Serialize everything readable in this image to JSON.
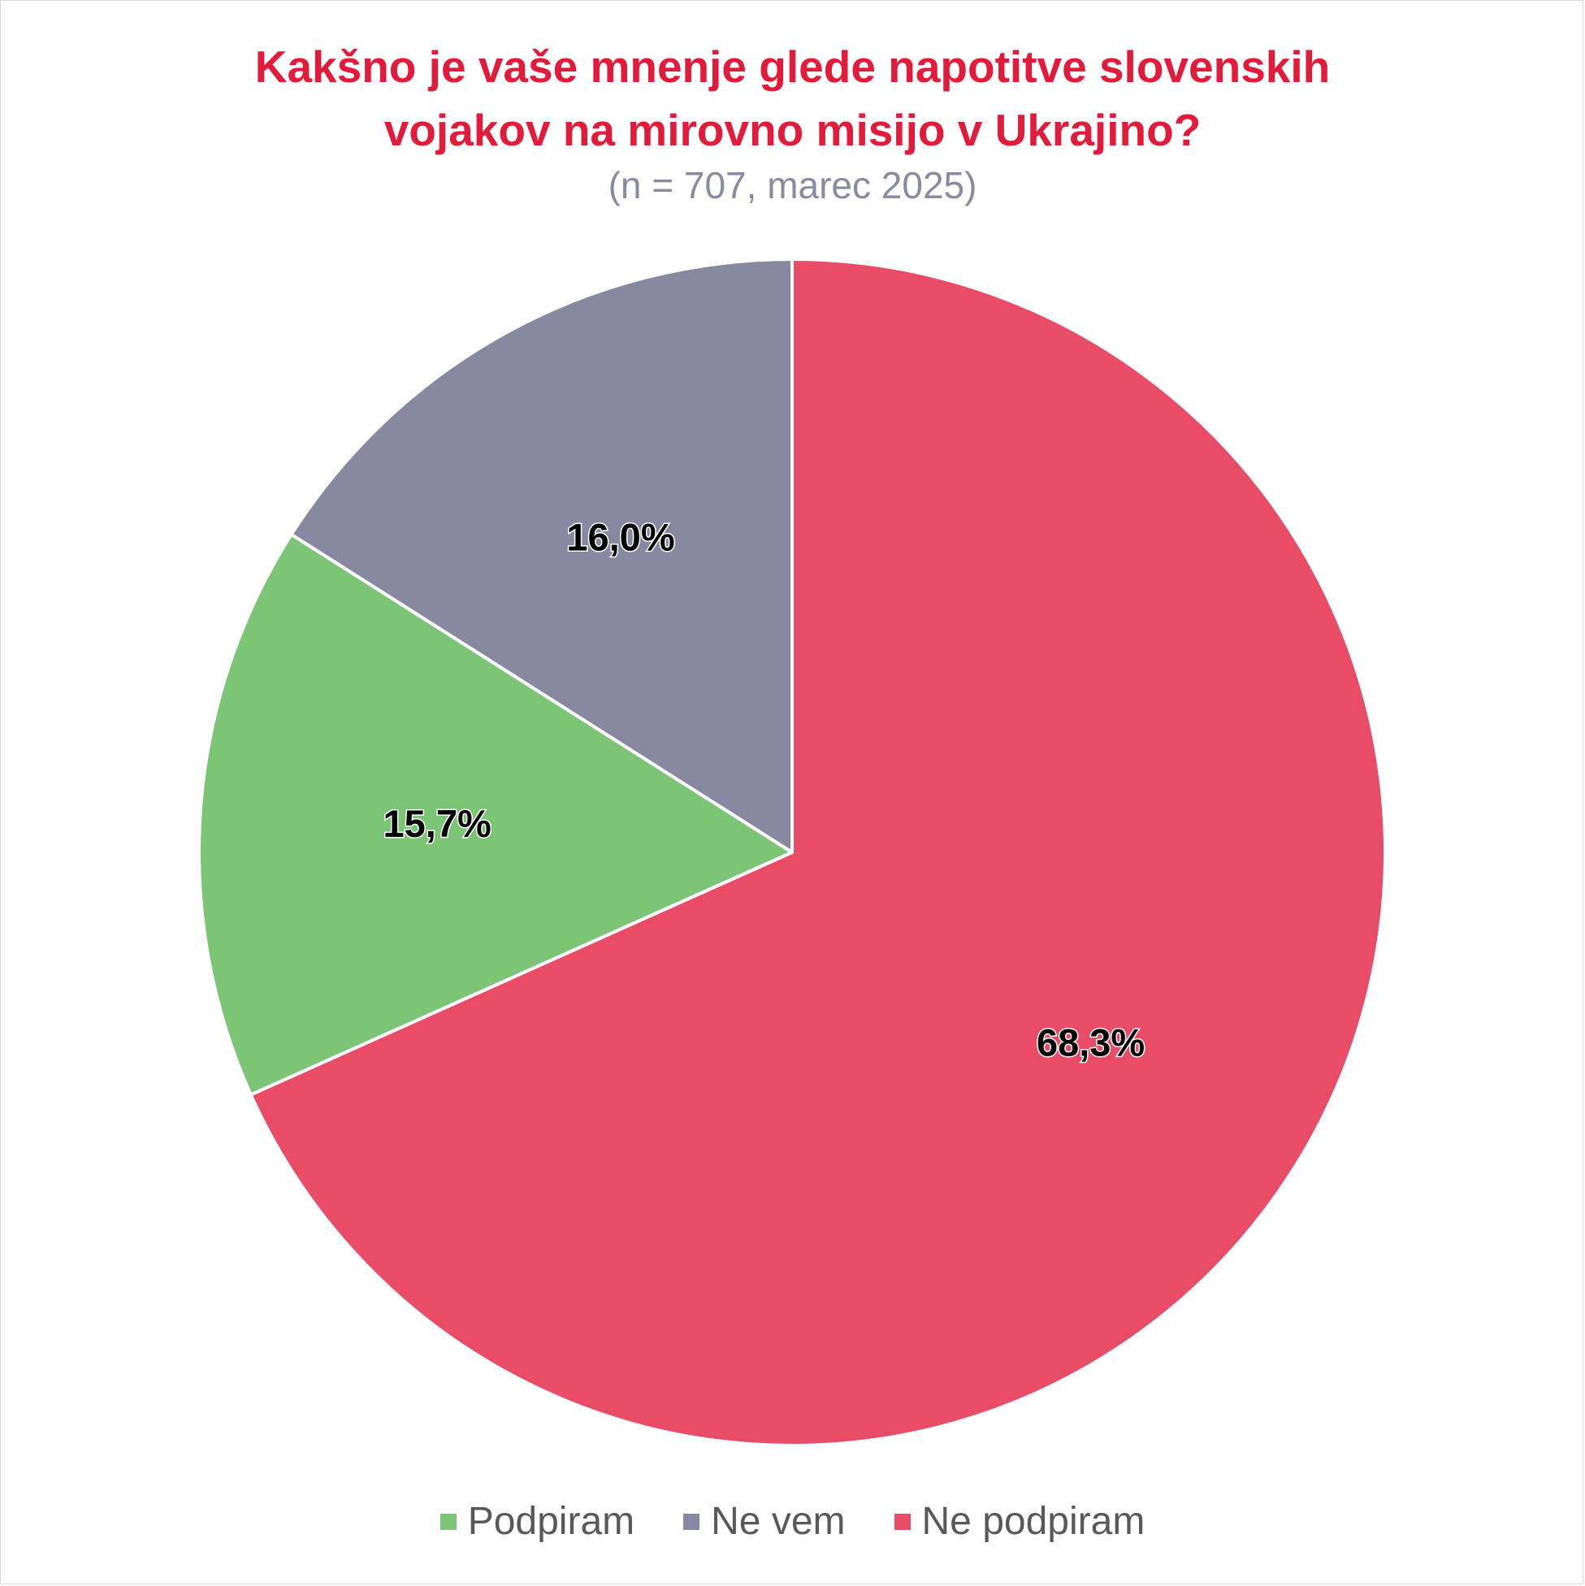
{
  "chart_data": {
    "type": "pie",
    "title": "Kakšno je vaše mnenje glede napotitve slovenskih vojakov na mirovno misijo v Ukrajino?",
    "title_lines": [
      "Kakšno je vaše mnenje glede napotitve slovenskih",
      "vojakov na mirovno misijo v Ukrajino?"
    ],
    "subtitle": "(n = 707, marec 2025)",
    "slices": [
      {
        "name": "Podpiram",
        "value": 15.7,
        "label": "15,7%",
        "color": "#7cc576"
      },
      {
        "name": "Ne vem",
        "value": 16.0,
        "label": "16,0%",
        "color": "#8888a1"
      },
      {
        "name": "Ne podpiram",
        "value": 68.3,
        "label": "68,3%",
        "color": "#e84c67"
      }
    ],
    "legend_position": "bottom"
  }
}
